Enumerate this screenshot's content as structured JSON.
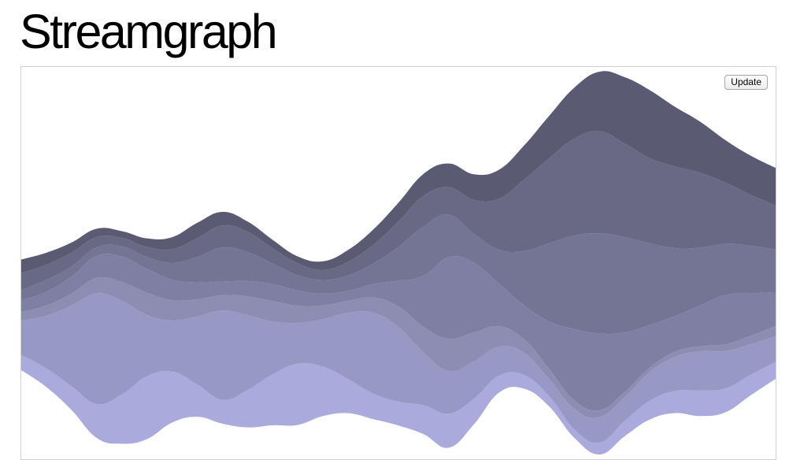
{
  "page": {
    "title": "Streamgraph"
  },
  "controls": {
    "update_label": "Update"
  },
  "chart_data": {
    "type": "area",
    "subtype": "streamgraph",
    "offset": "wiggle",
    "title": "",
    "xlabel": "",
    "ylabel": "",
    "axes_visible": false,
    "grid": false,
    "legend": "none",
    "x": [
      0,
      1,
      2,
      3,
      4,
      5,
      6,
      7,
      8,
      9,
      10,
      11,
      12,
      13,
      14,
      15,
      16,
      17,
      18,
      19,
      20,
      21,
      22,
      23,
      24,
      25,
      26,
      27,
      28,
      29,
      30
    ],
    "colors": [
      "#aaaadd",
      "#9898c4",
      "#8d8db4",
      "#7f7fa3",
      "#747494",
      "#696985",
      "#5a5a72"
    ],
    "series": [
      {
        "values": [
          18,
          22,
          28,
          40,
          58,
          74,
          60,
          38,
          28,
          44,
          60,
          72,
          58,
          40,
          30,
          28,
          34,
          40,
          30,
          20,
          16,
          12,
          10,
          14,
          18,
          22,
          26,
          30,
          28,
          24,
          20
        ]
      },
      {
        "values": [
          40,
          62,
          95,
          130,
          110,
          72,
          60,
          80,
          105,
          88,
          62,
          48,
          56,
          78,
          95,
          88,
          62,
          50,
          44,
          34,
          26,
          20,
          24,
          30,
          28,
          34,
          40,
          46,
          44,
          36,
          30
        ]
      },
      {
        "values": [
          10,
          12,
          14,
          18,
          22,
          26,
          24,
          20,
          18,
          22,
          24,
          20,
          16,
          14,
          18,
          24,
          30,
          38,
          34,
          24,
          16,
          12,
          10,
          8,
          6,
          5,
          6,
          6,
          8,
          10,
          12
        ]
      },
      {
        "values": [
          14,
          16,
          20,
          26,
          30,
          28,
          24,
          20,
          16,
          18,
          20,
          18,
          14,
          12,
          16,
          30,
          60,
          96,
          82,
          50,
          40,
          56,
          84,
          90,
          70,
          50,
          42,
          48,
          58,
          50,
          40
        ]
      },
      {
        "values": [
          12,
          14,
          12,
          10,
          12,
          14,
          20,
          30,
          40,
          34,
          24,
          18,
          16,
          18,
          24,
          40,
          58,
          50,
          34,
          40,
          64,
          92,
          110,
          118,
          112,
          96,
          80,
          68,
          60,
          56,
          50
        ]
      },
      {
        "values": [
          20,
          18,
          16,
          12,
          10,
          12,
          16,
          22,
          26,
          24,
          18,
          14,
          12,
          16,
          22,
          30,
          36,
          32,
          40,
          60,
          84,
          100,
          114,
          120,
          110,
          100,
          96,
          88,
          72,
          60,
          52
        ]
      },
      {
        "values": [
          16,
          14,
          12,
          10,
          8,
          10,
          14,
          18,
          16,
          12,
          10,
          8,
          10,
          14,
          18,
          22,
          26,
          28,
          30,
          34,
          40,
          50,
          60,
          70,
          78,
          80,
          70,
          60,
          50,
          46,
          44
        ]
      }
    ]
  }
}
